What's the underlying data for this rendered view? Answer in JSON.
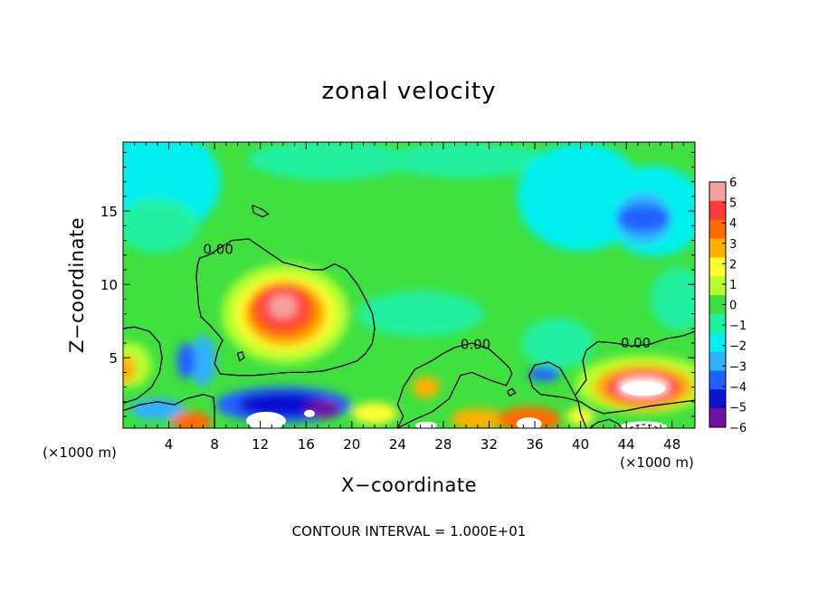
{
  "chart_data": {
    "type": "heatmap",
    "title": "zonal velocity",
    "xlabel": "X−coordinate",
    "ylabel": "Z−coordinate",
    "x_unit_label": "(×1000 m)",
    "xlim": [
      0,
      50
    ],
    "ylim": [
      0.2,
      19.7
    ],
    "x_ticks": [
      4,
      8,
      12,
      16,
      20,
      24,
      28,
      32,
      36,
      40,
      44,
      48
    ],
    "y_ticks": [
      5,
      10,
      15
    ],
    "colorbar": {
      "labels": [
        "6",
        "5",
        "4",
        "3",
        "2",
        "1",
        "0",
        "−1",
        "−2",
        "−3",
        "−4",
        "−5",
        "−6"
      ],
      "min": -6,
      "max": 6,
      "colors": [
        "#f7a0a0",
        "#ff3a3a",
        "#ff6a00",
        "#ffb000",
        "#ffff33",
        "#b8ff30",
        "#40e040",
        "#20f0a0",
        "#00f0f0",
        "#30b0ff",
        "#2060ff",
        "#1010d0",
        "#7010a0"
      ]
    },
    "contour_label": "0.00",
    "contour_levels": [
      0
    ],
    "footer": "CONTOUR INTERVAL = 1.000E+01",
    "features": [
      {
        "x": 14,
        "z": 8.5,
        "value": 6
      },
      {
        "x": 45.5,
        "z": 3.0,
        "value": 7
      },
      {
        "x": 35.5,
        "z": 0.8,
        "value": 6
      },
      {
        "x": 14,
        "z": 1.8,
        "value": -6
      },
      {
        "x": 12.5,
        "z": 0.8,
        "value": -7
      },
      {
        "x": 36.8,
        "z": 3.8,
        "value": -5
      },
      {
        "x": 45.5,
        "z": 14.5,
        "value": -4
      },
      {
        "x": 5.5,
        "z": 4.8,
        "value": -3
      }
    ]
  }
}
